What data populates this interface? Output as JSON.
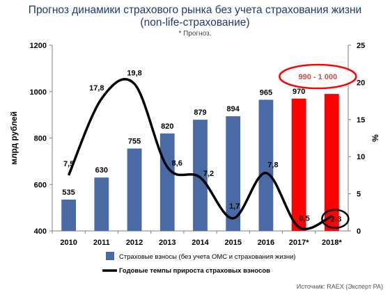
{
  "chart_data": {
    "type": "bar",
    "title": "Прогноз динамики страхового рынка без учета страхования жизни",
    "subtitle": "(non-life-страхование)",
    "note": "* Прогноз.",
    "source": "Источник: RAEX (Эксперт РА)",
    "categories": [
      "2010",
      "2011",
      "2012",
      "2013",
      "2014",
      "2015",
      "2016",
      "2017*",
      "2018*"
    ],
    "ylabel": "млрд рублей",
    "ylim": [
      400,
      1200
    ],
    "yticks": [
      "400",
      "600",
      "800",
      "1000",
      "1200"
    ],
    "y2label": "%",
    "y2lim": [
      0,
      25
    ],
    "y2ticks": [
      "0",
      "5",
      "10",
      "15",
      "20",
      "25"
    ],
    "grid": false,
    "legend_position": "bottom",
    "series": [
      {
        "name": "Страховые взносы (без учета ОМС и страхования жизни)",
        "type": "bar",
        "axis": "left",
        "values": [
          535,
          630,
          755,
          820,
          879,
          894,
          965,
          970,
          990
        ],
        "labels": [
          "535",
          "630",
          "755",
          "820",
          "879",
          "894",
          "965",
          "970",
          ""
        ],
        "colors": [
          "#4a6aa5",
          "#4a6aa5",
          "#4a6aa5",
          "#4a6aa5",
          "#4a6aa5",
          "#4a6aa5",
          "#4a6aa5",
          "#ff0000",
          "#ff0000"
        ]
      },
      {
        "name": "Годовые темпы прироста страховых взносов",
        "type": "line",
        "axis": "right",
        "color": "#000000",
        "values": [
          7.5,
          17.8,
          19.8,
          8.6,
          7.2,
          1.7,
          7.8,
          0.5,
          2.0
        ],
        "labels": [
          "7,5",
          "17,8",
          "19,8",
          "8,6",
          "7,2",
          "1,7",
          "7,8",
          "0,5",
          "2-3"
        ]
      }
    ],
    "annotations": [
      {
        "text": "990 - 1 000",
        "category": "2018*",
        "color": "#c0504d"
      }
    ]
  }
}
